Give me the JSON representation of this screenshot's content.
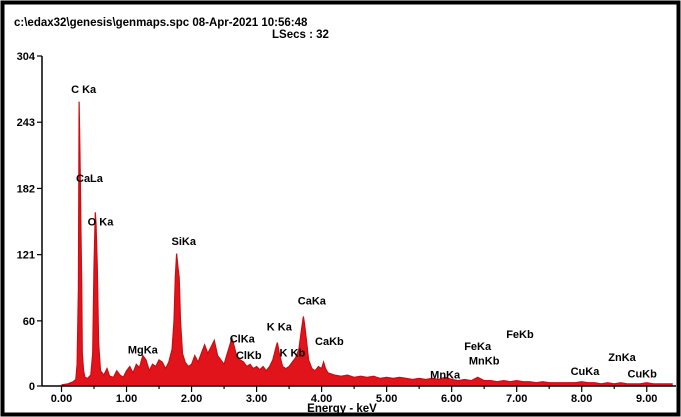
{
  "header": {
    "file_line": "c:\\edax32\\genesis\\genmaps.spc  08-Apr-2021 10:56:48",
    "lsecs": "LSecs :  32"
  },
  "chart_data": {
    "type": "line",
    "title": "",
    "xlabel": "Energy - keV",
    "ylabel": "",
    "xlim": [
      -0.3,
      9.45
    ],
    "ylim": [
      0,
      304
    ],
    "x_ticks": [
      0,
      1,
      2,
      3,
      4,
      5,
      6,
      7,
      8,
      9
    ],
    "x_tick_labels": [
      "0.00",
      "1.00",
      "2.00",
      "3.00",
      "4.00",
      "5.00",
      "6.00",
      "7.00",
      "8.00",
      "9.00"
    ],
    "y_ticks": [
      0,
      60,
      121,
      182,
      243,
      304
    ],
    "y_tick_labels": [
      "0",
      "60",
      "121",
      "182",
      "243",
      "304"
    ],
    "series_color": "#e0141a",
    "spectrum_points": [
      [
        0.0,
        1
      ],
      [
        0.1,
        2
      ],
      [
        0.18,
        4
      ],
      [
        0.22,
        6
      ],
      [
        0.24,
        20
      ],
      [
        0.26,
        90
      ],
      [
        0.27,
        262
      ],
      [
        0.28,
        230
      ],
      [
        0.29,
        185
      ],
      [
        0.3,
        140
      ],
      [
        0.31,
        95
      ],
      [
        0.32,
        30
      ],
      [
        0.34,
        14
      ],
      [
        0.36,
        8
      ],
      [
        0.4,
        7
      ],
      [
        0.45,
        10
      ],
      [
        0.48,
        30
      ],
      [
        0.5,
        110
      ],
      [
        0.52,
        160
      ],
      [
        0.53,
        150
      ],
      [
        0.55,
        110
      ],
      [
        0.57,
        40
      ],
      [
        0.6,
        14
      ],
      [
        0.65,
        10
      ],
      [
        0.7,
        16
      ],
      [
        0.74,
        9
      ],
      [
        0.8,
        8
      ],
      [
        0.85,
        14
      ],
      [
        0.9,
        10
      ],
      [
        0.95,
        8
      ],
      [
        1.0,
        14
      ],
      [
        1.05,
        18
      ],
      [
        1.1,
        12
      ],
      [
        1.15,
        20
      ],
      [
        1.2,
        17
      ],
      [
        1.25,
        28
      ],
      [
        1.3,
        24
      ],
      [
        1.35,
        14
      ],
      [
        1.4,
        20
      ],
      [
        1.45,
        18
      ],
      [
        1.5,
        24
      ],
      [
        1.55,
        22
      ],
      [
        1.6,
        16
      ],
      [
        1.65,
        22
      ],
      [
        1.7,
        34
      ],
      [
        1.73,
        60
      ],
      [
        1.75,
        100
      ],
      [
        1.77,
        122
      ],
      [
        1.79,
        110
      ],
      [
        1.81,
        100
      ],
      [
        1.83,
        60
      ],
      [
        1.86,
        30
      ],
      [
        1.9,
        22
      ],
      [
        1.95,
        18
      ],
      [
        2.0,
        20
      ],
      [
        2.05,
        28
      ],
      [
        2.1,
        22
      ],
      [
        2.15,
        30
      ],
      [
        2.2,
        38
      ],
      [
        2.25,
        30
      ],
      [
        2.3,
        36
      ],
      [
        2.35,
        42
      ],
      [
        2.4,
        28
      ],
      [
        2.45,
        24
      ],
      [
        2.5,
        20
      ],
      [
        2.55,
        30
      ],
      [
        2.6,
        40
      ],
      [
        2.62,
        44
      ],
      [
        2.65,
        38
      ],
      [
        2.7,
        26
      ],
      [
        2.75,
        24
      ],
      [
        2.8,
        22
      ],
      [
        2.85,
        18
      ],
      [
        2.9,
        20
      ],
      [
        2.95,
        16
      ],
      [
        3.0,
        18
      ],
      [
        3.05,
        15
      ],
      [
        3.1,
        18
      ],
      [
        3.15,
        14
      ],
      [
        3.2,
        18
      ],
      [
        3.25,
        24
      ],
      [
        3.3,
        36
      ],
      [
        3.32,
        40
      ],
      [
        3.35,
        30
      ],
      [
        3.4,
        18
      ],
      [
        3.45,
        16
      ],
      [
        3.5,
        18
      ],
      [
        3.55,
        22
      ],
      [
        3.6,
        26
      ],
      [
        3.65,
        34
      ],
      [
        3.69,
        52
      ],
      [
        3.72,
        64
      ],
      [
        3.74,
        56
      ],
      [
        3.77,
        40
      ],
      [
        3.8,
        24
      ],
      [
        3.85,
        16
      ],
      [
        3.9,
        14
      ],
      [
        3.95,
        18
      ],
      [
        4.0,
        16
      ],
      [
        4.03,
        22
      ],
      [
        4.06,
        16
      ],
      [
        4.1,
        12
      ],
      [
        4.2,
        10
      ],
      [
        4.3,
        9
      ],
      [
        4.4,
        10
      ],
      [
        4.5,
        8
      ],
      [
        4.6,
        9
      ],
      [
        4.7,
        8
      ],
      [
        4.8,
        9
      ],
      [
        4.9,
        7
      ],
      [
        5.0,
        8
      ],
      [
        5.1,
        7
      ],
      [
        5.2,
        8
      ],
      [
        5.3,
        7
      ],
      [
        5.4,
        6
      ],
      [
        5.5,
        7
      ],
      [
        5.6,
        6
      ],
      [
        5.7,
        7
      ],
      [
        5.8,
        6
      ],
      [
        5.9,
        8
      ],
      [
        6.0,
        6
      ],
      [
        6.1,
        5
      ],
      [
        6.2,
        6
      ],
      [
        6.3,
        5
      ],
      [
        6.4,
        8
      ],
      [
        6.5,
        5
      ],
      [
        6.6,
        5
      ],
      [
        6.7,
        4
      ],
      [
        6.8,
        5
      ],
      [
        6.9,
        4
      ],
      [
        7.0,
        5
      ],
      [
        7.1,
        4
      ],
      [
        7.2,
        4
      ],
      [
        7.3,
        3
      ],
      [
        7.4,
        4
      ],
      [
        7.5,
        3
      ],
      [
        7.6,
        3
      ],
      [
        7.7,
        3
      ],
      [
        7.8,
        3
      ],
      [
        7.9,
        3
      ],
      [
        8.0,
        4
      ],
      [
        8.1,
        3
      ],
      [
        8.2,
        3
      ],
      [
        8.3,
        2
      ],
      [
        8.4,
        3
      ],
      [
        8.5,
        2
      ],
      [
        8.6,
        3
      ],
      [
        8.7,
        2
      ],
      [
        8.8,
        2
      ],
      [
        8.9,
        2
      ],
      [
        9.0,
        3
      ],
      [
        9.1,
        2
      ],
      [
        9.2,
        2
      ],
      [
        9.3,
        2
      ],
      [
        9.4,
        2
      ]
    ],
    "annotations": [
      {
        "label": "C Ka",
        "x": 0.34,
        "y": 270
      },
      {
        "label": "CaLa",
        "x": 0.43,
        "y": 188
      },
      {
        "label": "O Ka",
        "x": 0.6,
        "y": 148
      },
      {
        "label": "SiKa",
        "x": 1.88,
        "y": 130
      },
      {
        "label": "MgKa",
        "x": 1.25,
        "y": 30
      },
      {
        "label": "ClKa",
        "x": 2.78,
        "y": 40
      },
      {
        "label": "ClKb",
        "x": 2.88,
        "y": 25
      },
      {
        "label": "K Ka",
        "x": 3.35,
        "y": 51
      },
      {
        "label": "K Kb",
        "x": 3.55,
        "y": 27
      },
      {
        "label": "CaKa",
        "x": 3.85,
        "y": 75
      },
      {
        "label": "CaKb",
        "x": 4.12,
        "y": 38
      },
      {
        "label": "MnKa",
        "x": 5.9,
        "y": 7
      },
      {
        "label": "FeKa",
        "x": 6.4,
        "y": 33
      },
      {
        "label": "MnKb",
        "x": 6.5,
        "y": 20
      },
      {
        "label": "FeKb",
        "x": 7.05,
        "y": 44
      },
      {
        "label": "CuKa",
        "x": 8.05,
        "y": 10
      },
      {
        "label": "ZnKa",
        "x": 8.62,
        "y": 23
      },
      {
        "label": "CuKb",
        "x": 8.93,
        "y": 8
      }
    ]
  }
}
